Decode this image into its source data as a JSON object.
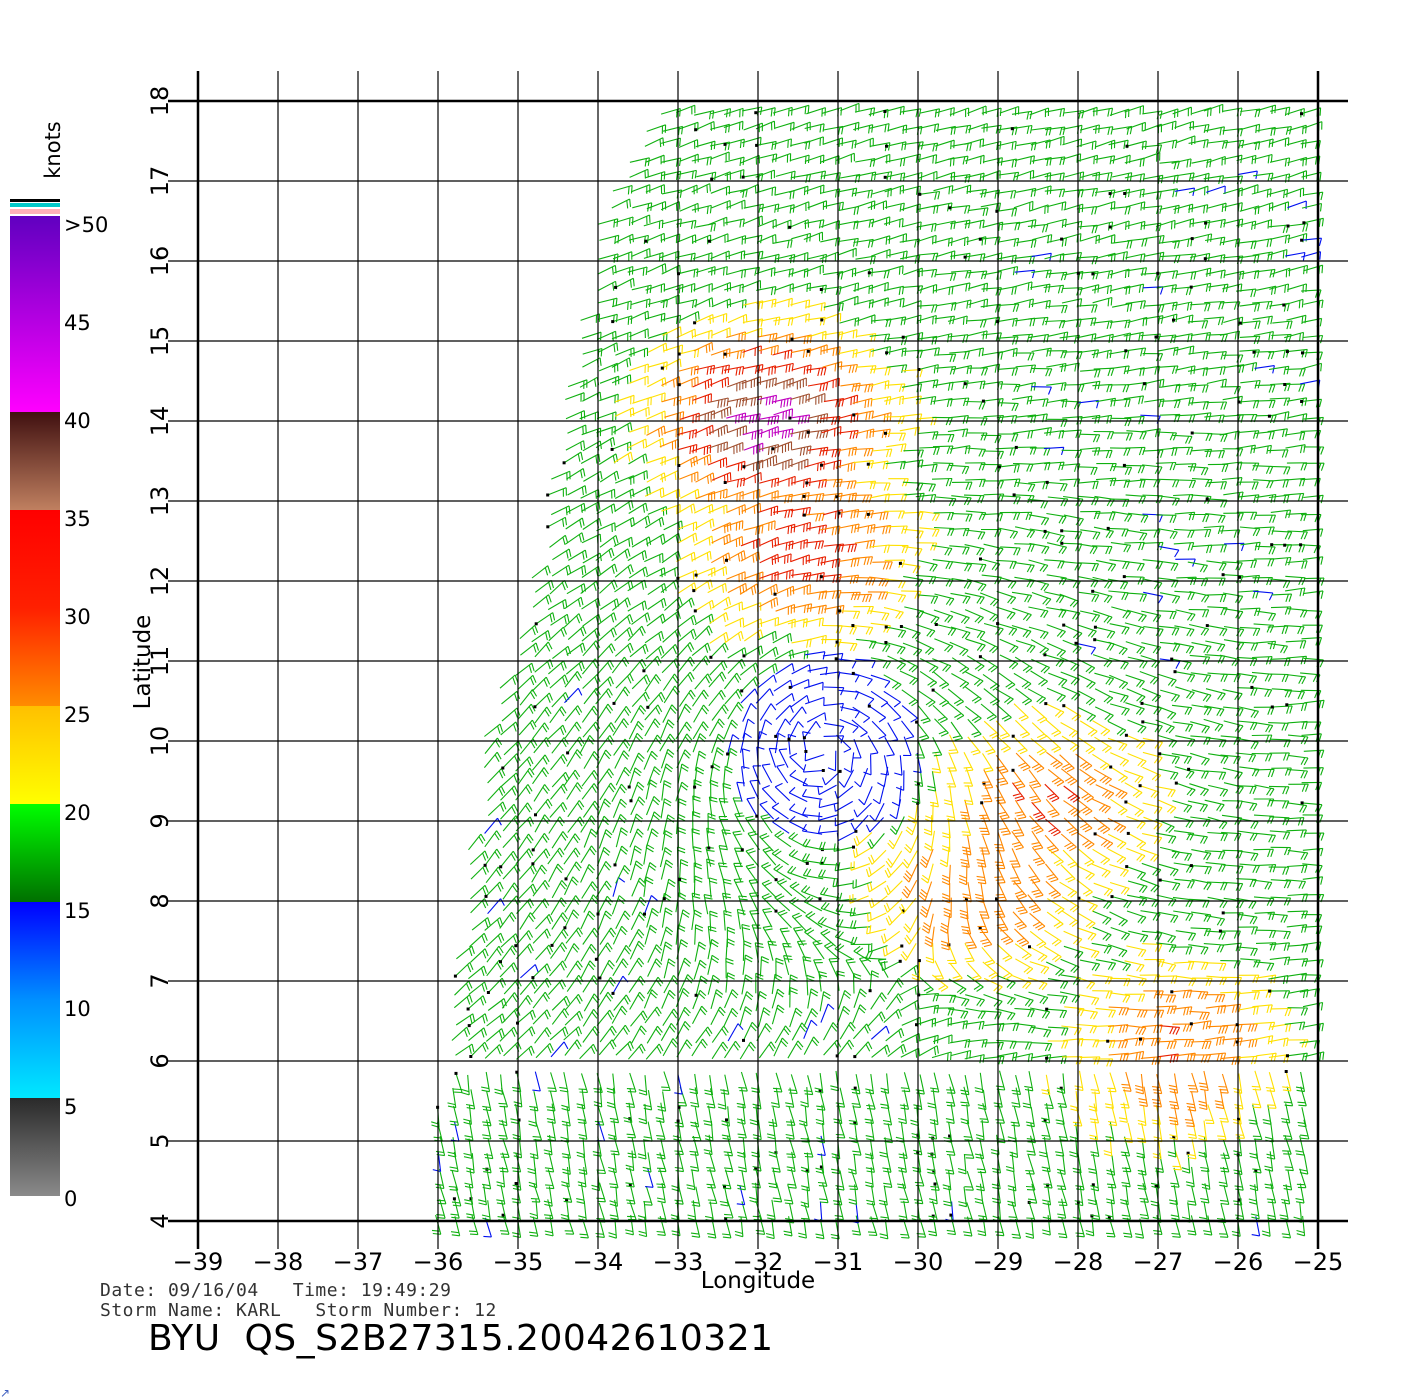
{
  "map": {
    "type": "wind-barb-map",
    "xlabel": "Longitude",
    "ylabel": "Latitude",
    "xlim": [
      -39,
      -25
    ],
    "ylim": [
      4,
      18
    ],
    "grid": true,
    "x_ticks": [
      -39,
      -38,
      -37,
      -36,
      -35,
      -34,
      -33,
      -32,
      -31,
      -30,
      -29,
      -28,
      -27,
      -26,
      -25
    ],
    "y_ticks": [
      4,
      5,
      6,
      7,
      8,
      9,
      10,
      11,
      12,
      13,
      14,
      15,
      16,
      17,
      18
    ],
    "swath_polygon": [
      [
        -36.05,
        4
      ],
      [
        -25,
        4
      ],
      [
        -25,
        18
      ],
      [
        -33.3,
        18
      ],
      [
        -34.0,
        16.6
      ],
      [
        -34.85,
        11.9
      ],
      [
        -35.45,
        10.0
      ],
      [
        -36.05,
        5.2
      ]
    ],
    "wind_features": [
      {
        "lon": -31.2,
        "lat": 9.9,
        "kind": "cyclonic-center"
      },
      {
        "lon": -32.0,
        "lat": 14.0,
        "peak_knots": 42
      },
      {
        "lon": -31.6,
        "lat": 12.4,
        "peak_knots": 33
      },
      {
        "lon": -28.5,
        "lat": 9.3,
        "peak_knots": 30
      },
      {
        "lon": -26.8,
        "lat": 6.2,
        "peak_knots": 30
      },
      {
        "lon": -29.2,
        "lat": 8.2,
        "peak_knots": 29
      }
    ]
  },
  "colorbar": {
    "title": "knots",
    "labels": [
      ">50",
      "45",
      "40",
      "35",
      "30",
      "25",
      "20",
      "15",
      "10",
      "5",
      "0"
    ],
    "stops": [
      {
        "knots": 0,
        "color": "#8a8a8a"
      },
      {
        "knots": 5,
        "color": "#2a2a2a"
      },
      {
        "knots": 5,
        "color": "#00e8ff"
      },
      {
        "knots": 10,
        "color": "#0090ff"
      },
      {
        "knots": 15,
        "color": "#0000ff"
      },
      {
        "knots": 15,
        "color": "#007000"
      },
      {
        "knots": 20,
        "color": "#00ff00"
      },
      {
        "knots": 20,
        "color": "#ffff00"
      },
      {
        "knots": 25,
        "color": "#ffc000"
      },
      {
        "knots": 25,
        "color": "#ff8c00"
      },
      {
        "knots": 30,
        "color": "#ff2000"
      },
      {
        "knots": 35,
        "color": "#ff0000"
      },
      {
        "knots": 35,
        "color": "#c08060"
      },
      {
        "knots": 40,
        "color": "#401010"
      },
      {
        "knots": 40,
        "color": "#ff00ff"
      },
      {
        "knots": 50,
        "color": "#6000c0"
      }
    ]
  },
  "info": {
    "line1": "Date: 09/16/04   Time: 19:49:29",
    "line2": "Storm Name: KARL   Storm Number: 12",
    "pass_id": "BYU  QS_S2B27315.20042610321"
  },
  "corner_mark": "↗"
}
